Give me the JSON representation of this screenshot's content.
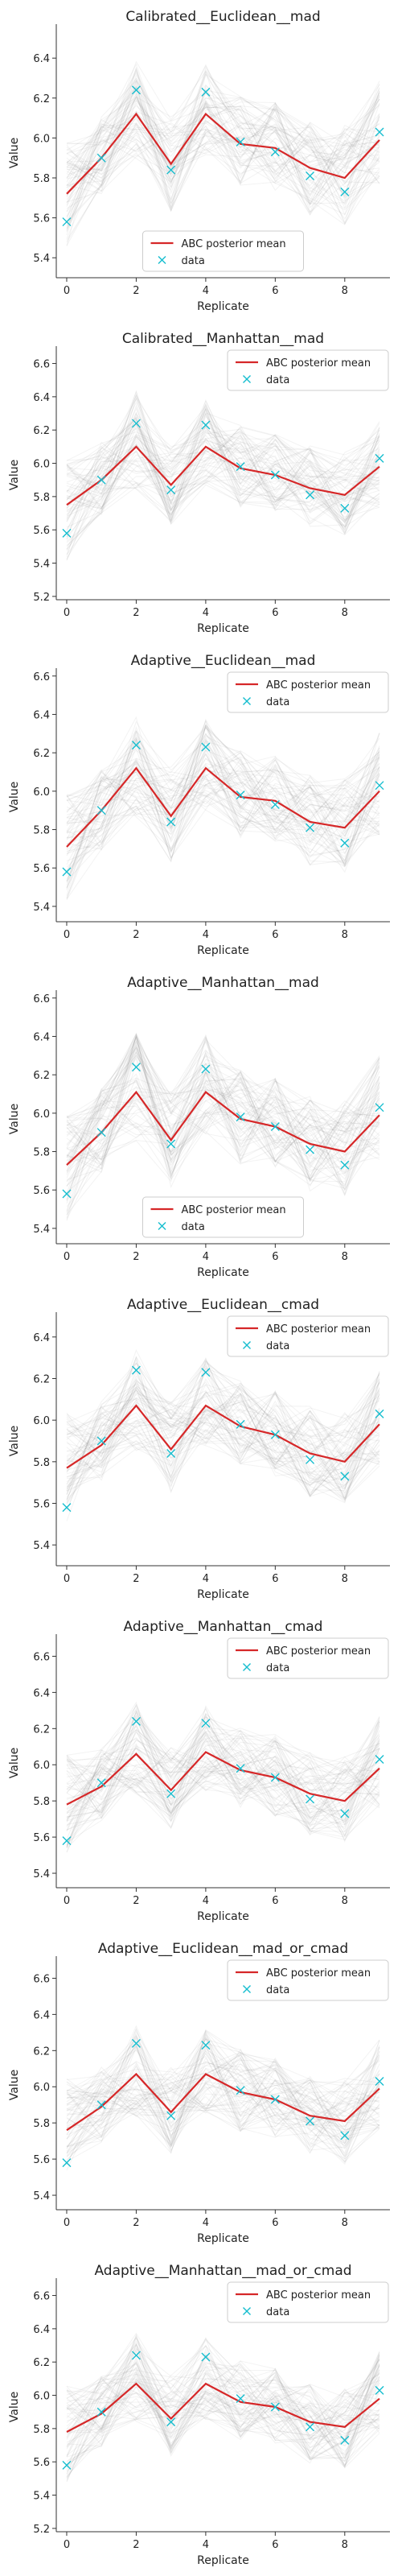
{
  "colors": {
    "posterior_mean": "#d62728",
    "data": "#17becf",
    "samples": "#7f7f7f",
    "axis": "#333333"
  },
  "chart_data": [
    {
      "type": "line",
      "title": "Calibrated__Euclidean__mad",
      "xlabel": "Replicate",
      "ylabel": "Value",
      "x": [
        0,
        1,
        2,
        3,
        4,
        5,
        6,
        7,
        8,
        9
      ],
      "xticks": [
        "0",
        "2",
        "4",
        "6",
        "8"
      ],
      "yticks": [
        "5.4",
        "5.6",
        "5.8",
        "6.0",
        "6.2",
        "6.4"
      ],
      "ylim": [
        5.3,
        6.55
      ],
      "legend": "bottom-center",
      "series": [
        {
          "name": "ABC posterior mean",
          "values": [
            5.72,
            5.9,
            6.12,
            5.87,
            6.12,
            5.97,
            5.95,
            5.85,
            5.8,
            5.99
          ]
        },
        {
          "name": "data",
          "values": [
            5.58,
            5.9,
            6.24,
            5.84,
            6.23,
            5.98,
            5.93,
            5.81,
            5.73,
            6.03
          ]
        }
      ],
      "sample_band": {
        "lower": [
          5.42,
          5.7,
          5.88,
          5.62,
          5.9,
          5.75,
          5.72,
          5.6,
          5.55,
          5.75
        ],
        "upper": [
          6.0,
          6.12,
          6.4,
          6.12,
          6.38,
          6.22,
          6.2,
          6.1,
          6.08,
          6.3
        ]
      }
    },
    {
      "type": "line",
      "title": "Calibrated__Manhattan__mad",
      "xlabel": "Replicate",
      "ylabel": "Value",
      "x": [
        0,
        1,
        2,
        3,
        4,
        5,
        6,
        7,
        8,
        9
      ],
      "xticks": [
        "0",
        "2",
        "4",
        "6",
        "8"
      ],
      "yticks": [
        "5.2",
        "5.4",
        "5.6",
        "5.8",
        "6.0",
        "6.2",
        "6.4",
        "6.6"
      ],
      "ylim": [
        5.18,
        6.68
      ],
      "legend": "top-right",
      "series": [
        {
          "name": "ABC posterior mean",
          "values": [
            5.75,
            5.9,
            6.1,
            5.87,
            6.1,
            5.97,
            5.93,
            5.85,
            5.81,
            5.98
          ]
        },
        {
          "name": "data",
          "values": [
            5.58,
            5.9,
            6.24,
            5.84,
            6.23,
            5.98,
            5.93,
            5.81,
            5.73,
            6.03
          ]
        }
      ],
      "sample_band": {
        "lower": [
          5.4,
          5.68,
          5.82,
          5.62,
          5.85,
          5.72,
          5.7,
          5.6,
          5.55,
          5.72
        ],
        "upper": [
          6.05,
          6.15,
          6.45,
          6.15,
          6.4,
          6.25,
          6.2,
          6.12,
          6.08,
          6.3
        ]
      }
    },
    {
      "type": "line",
      "title": "Adaptive__Euclidean__mad",
      "xlabel": "Replicate",
      "ylabel": "Value",
      "x": [
        0,
        1,
        2,
        3,
        4,
        5,
        6,
        7,
        8,
        9
      ],
      "xticks": [
        "0",
        "2",
        "4",
        "6",
        "8"
      ],
      "yticks": [
        "5.4",
        "5.6",
        "5.8",
        "6.0",
        "6.2",
        "6.4",
        "6.6"
      ],
      "ylim": [
        5.32,
        6.62
      ],
      "legend": "top-right",
      "series": [
        {
          "name": "ABC posterior mean",
          "values": [
            5.71,
            5.9,
            6.12,
            5.87,
            6.12,
            5.97,
            5.95,
            5.84,
            5.81,
            6.0
          ]
        },
        {
          "name": "data",
          "values": [
            5.58,
            5.9,
            6.24,
            5.84,
            6.23,
            5.98,
            5.93,
            5.81,
            5.73,
            6.03
          ]
        }
      ],
      "sample_band": {
        "lower": [
          5.42,
          5.68,
          5.85,
          5.62,
          5.88,
          5.74,
          5.72,
          5.6,
          5.56,
          5.75
        ],
        "upper": [
          6.0,
          6.14,
          6.42,
          6.14,
          6.4,
          6.24,
          6.2,
          6.1,
          6.08,
          6.32
        ]
      }
    },
    {
      "type": "line",
      "title": "Adaptive__Manhattan__mad",
      "xlabel": "Replicate",
      "ylabel": "Value",
      "x": [
        0,
        1,
        2,
        3,
        4,
        5,
        6,
        7,
        8,
        9
      ],
      "xticks": [
        "0",
        "2",
        "4",
        "6",
        "8"
      ],
      "yticks": [
        "5.4",
        "5.6",
        "5.8",
        "6.0",
        "6.2",
        "6.4",
        "6.6"
      ],
      "ylim": [
        5.32,
        6.62
      ],
      "legend": "bottom-center",
      "series": [
        {
          "name": "ABC posterior mean",
          "values": [
            5.73,
            5.9,
            6.11,
            5.86,
            6.11,
            5.97,
            5.93,
            5.84,
            5.8,
            5.99
          ]
        },
        {
          "name": "data",
          "values": [
            5.58,
            5.9,
            6.24,
            5.84,
            6.23,
            5.98,
            5.93,
            5.81,
            5.73,
            6.03
          ]
        }
      ],
      "sample_band": {
        "lower": [
          5.42,
          5.68,
          5.84,
          5.6,
          5.86,
          5.72,
          5.7,
          5.58,
          5.55,
          5.74
        ],
        "upper": [
          6.02,
          6.14,
          6.44,
          6.14,
          6.42,
          6.24,
          6.2,
          6.1,
          6.08,
          6.32
        ]
      }
    },
    {
      "type": "line",
      "title": "Adaptive__Euclidean__cmad",
      "xlabel": "Replicate",
      "ylabel": "Value",
      "x": [
        0,
        1,
        2,
        3,
        4,
        5,
        6,
        7,
        8,
        9
      ],
      "xticks": [
        "0",
        "2",
        "4",
        "6",
        "8"
      ],
      "yticks": [
        "5.4",
        "5.6",
        "5.8",
        "6.0",
        "6.2",
        "6.4"
      ],
      "ylim": [
        5.3,
        6.5
      ],
      "legend": "top-right",
      "series": [
        {
          "name": "ABC posterior mean",
          "values": [
            5.77,
            5.88,
            6.07,
            5.86,
            6.07,
            5.97,
            5.93,
            5.84,
            5.8,
            5.98
          ]
        },
        {
          "name": "data",
          "values": [
            5.58,
            5.9,
            6.24,
            5.84,
            6.23,
            5.98,
            5.93,
            5.81,
            5.73,
            6.03
          ]
        }
      ],
      "sample_band": {
        "lower": [
          5.5,
          5.7,
          5.84,
          5.64,
          5.86,
          5.76,
          5.72,
          5.62,
          5.58,
          5.76
        ],
        "upper": [
          6.05,
          6.1,
          6.35,
          6.1,
          6.32,
          6.2,
          6.16,
          6.08,
          6.05,
          6.25
        ]
      }
    },
    {
      "type": "line",
      "title": "Adaptive__Manhattan__cmad",
      "xlabel": "Replicate",
      "ylabel": "Value",
      "x": [
        0,
        1,
        2,
        3,
        4,
        5,
        6,
        7,
        8,
        9
      ],
      "xticks": [
        "0",
        "2",
        "4",
        "6",
        "8"
      ],
      "yticks": [
        "5.4",
        "5.6",
        "5.8",
        "6.0",
        "6.2",
        "6.4",
        "6.6"
      ],
      "ylim": [
        5.32,
        6.7
      ],
      "legend": "top-right",
      "series": [
        {
          "name": "ABC posterior mean",
          "values": [
            5.78,
            5.88,
            6.06,
            5.86,
            6.07,
            5.97,
            5.93,
            5.84,
            5.8,
            5.98
          ]
        },
        {
          "name": "data",
          "values": [
            5.58,
            5.9,
            6.24,
            5.84,
            6.23,
            5.98,
            5.93,
            5.81,
            5.73,
            6.03
          ]
        }
      ],
      "sample_band": {
        "lower": [
          5.5,
          5.68,
          5.82,
          5.62,
          5.84,
          5.74,
          5.7,
          5.6,
          5.56,
          5.74
        ],
        "upper": [
          6.08,
          6.12,
          6.36,
          6.12,
          6.34,
          6.22,
          6.18,
          6.08,
          6.06,
          6.28
        ]
      }
    },
    {
      "type": "line",
      "title": "Adaptive__Euclidean__mad_or_cmad",
      "xlabel": "Replicate",
      "ylabel": "Value",
      "x": [
        0,
        1,
        2,
        3,
        4,
        5,
        6,
        7,
        8,
        9
      ],
      "xticks": [
        "0",
        "2",
        "4",
        "6",
        "8"
      ],
      "yticks": [
        "5.4",
        "5.6",
        "5.8",
        "6.0",
        "6.2",
        "6.4",
        "6.6"
      ],
      "ylim": [
        5.32,
        6.7
      ],
      "legend": "top-right",
      "series": [
        {
          "name": "ABC posterior mean",
          "values": [
            5.76,
            5.89,
            6.07,
            5.86,
            6.07,
            5.97,
            5.93,
            5.84,
            5.81,
            5.99
          ]
        },
        {
          "name": "data",
          "values": [
            5.58,
            5.9,
            6.24,
            5.84,
            6.23,
            5.98,
            5.93,
            5.81,
            5.73,
            6.03
          ]
        }
      ],
      "sample_band": {
        "lower": [
          5.48,
          5.68,
          5.82,
          5.62,
          5.84,
          5.74,
          5.7,
          5.6,
          5.56,
          5.74
        ],
        "upper": [
          6.06,
          6.12,
          6.36,
          6.12,
          6.34,
          6.22,
          6.18,
          6.08,
          6.06,
          6.28
        ]
      }
    },
    {
      "type": "line",
      "title": "Adaptive__Manhattan__mad_or_cmad",
      "xlabel": "Replicate",
      "ylabel": "Value",
      "x": [
        0,
        1,
        2,
        3,
        4,
        5,
        6,
        7,
        8,
        9
      ],
      "xticks": [
        "0",
        "2",
        "4",
        "6",
        "8"
      ],
      "yticks": [
        "5.2",
        "5.4",
        "5.6",
        "5.8",
        "6.0",
        "6.2",
        "6.4",
        "6.6"
      ],
      "ylim": [
        5.18,
        6.68
      ],
      "legend": "top-right",
      "series": [
        {
          "name": "ABC posterior mean",
          "values": [
            5.78,
            5.89,
            6.07,
            5.86,
            6.07,
            5.96,
            5.93,
            5.84,
            5.81,
            5.98
          ]
        },
        {
          "name": "data",
          "values": [
            5.58,
            5.9,
            6.24,
            5.84,
            6.23,
            5.98,
            5.93,
            5.81,
            5.73,
            6.03
          ]
        }
      ],
      "sample_band": {
        "lower": [
          5.46,
          5.68,
          5.82,
          5.62,
          5.84,
          5.72,
          5.7,
          5.58,
          5.55,
          5.72
        ],
        "upper": [
          6.08,
          6.14,
          6.4,
          6.14,
          6.36,
          6.22,
          6.18,
          6.08,
          6.06,
          6.28
        ]
      }
    }
  ]
}
